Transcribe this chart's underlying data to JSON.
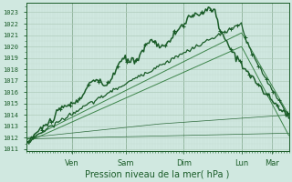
{
  "bg_color": "#d0e8e0",
  "grid_color_major": "#b0ccbb",
  "grid_color_minor": "#c4ddd2",
  "line_color_dark": "#1a5c28",
  "line_color_mid": "#2d7a3a",
  "ylabel_ticks": [
    1011,
    1012,
    1013,
    1014,
    1015,
    1016,
    1017,
    1018,
    1019,
    1020,
    1021,
    1022,
    1023
  ],
  "xlabels": [
    "Ven",
    "Sam",
    "Dim",
    "Lun",
    "Mar"
  ],
  "xtick_positions": [
    0.175,
    0.38,
    0.6,
    0.82,
    0.935
  ],
  "xlabel": "Pression niveau de la mer( hPa )",
  "ymin": 1010.8,
  "ymax": 1023.8,
  "num_points": 200
}
